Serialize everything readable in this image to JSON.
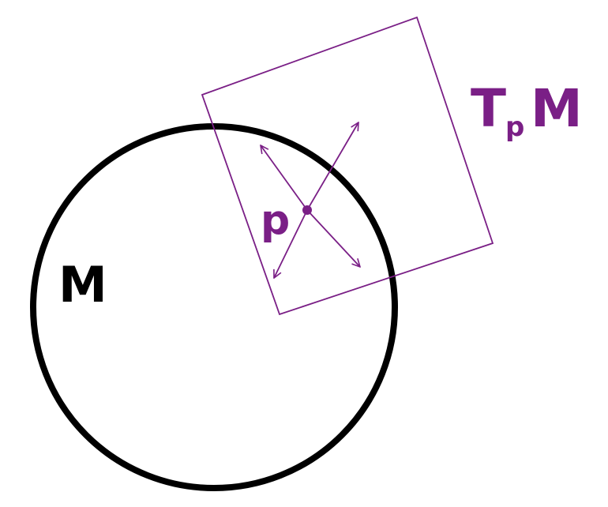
{
  "labels": {
    "manifold": "M",
    "point": "p",
    "tangent_space_T": "T",
    "tangent_space_sub": "p",
    "tangent_space_M": "M"
  },
  "colors": {
    "manifold": "#000000",
    "tangent": "#7a1f86",
    "background": "#ffffff"
  }
}
